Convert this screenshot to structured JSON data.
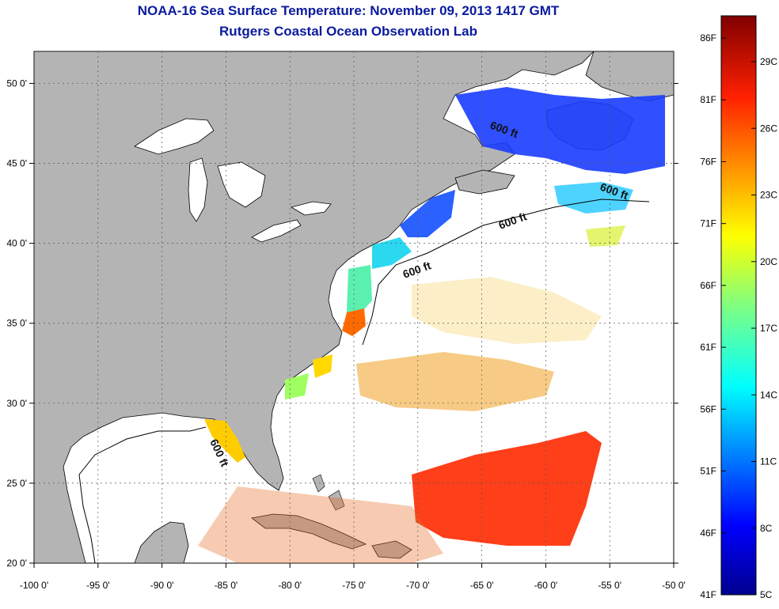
{
  "header": {
    "title": "NOAA-16 Sea Surface Temperature:  November 09, 2013 1417 GMT",
    "subtitle": "Rutgers Coastal Ocean Observation Lab"
  },
  "map": {
    "lon_labels": [
      "-100 0'",
      "-95 0'",
      "-90 0'",
      "-85 0'",
      "-80 0'",
      "-75 0'",
      "-70 0'",
      "-65 0'",
      "-60 0'",
      "-55 0'",
      "-50 0'"
    ],
    "lat_labels": [
      "50 0'",
      "45 0'",
      "40 0'",
      "35 0'",
      "30 0'",
      "25 0'",
      "20 0'"
    ],
    "lon_range": [
      -100,
      -50
    ],
    "lat_range": [
      20,
      52
    ],
    "contour_labels": [
      "600 ft",
      "600 ft",
      "600 ft",
      "600 ft",
      "600 ft"
    ],
    "colors": {
      "land": "#b4b4b4",
      "water_no_data": "#ffffff"
    }
  },
  "colorbar": {
    "fahrenheit_labels": [
      "86F",
      "81F",
      "76F",
      "71F",
      "66F",
      "61F",
      "56F",
      "51F",
      "46F",
      "41F"
    ],
    "celsius_labels": [
      "29C",
      "26C",
      "23C",
      "20C",
      "17C",
      "14C",
      "11C",
      "8C",
      "5C"
    ],
    "range_c": [
      5,
      31
    ],
    "colors": [
      "#00008f",
      "#0000ff",
      "#0080ff",
      "#00ffff",
      "#80ff80",
      "#ffff00",
      "#ff8000",
      "#ff0000",
      "#800000"
    ]
  }
}
